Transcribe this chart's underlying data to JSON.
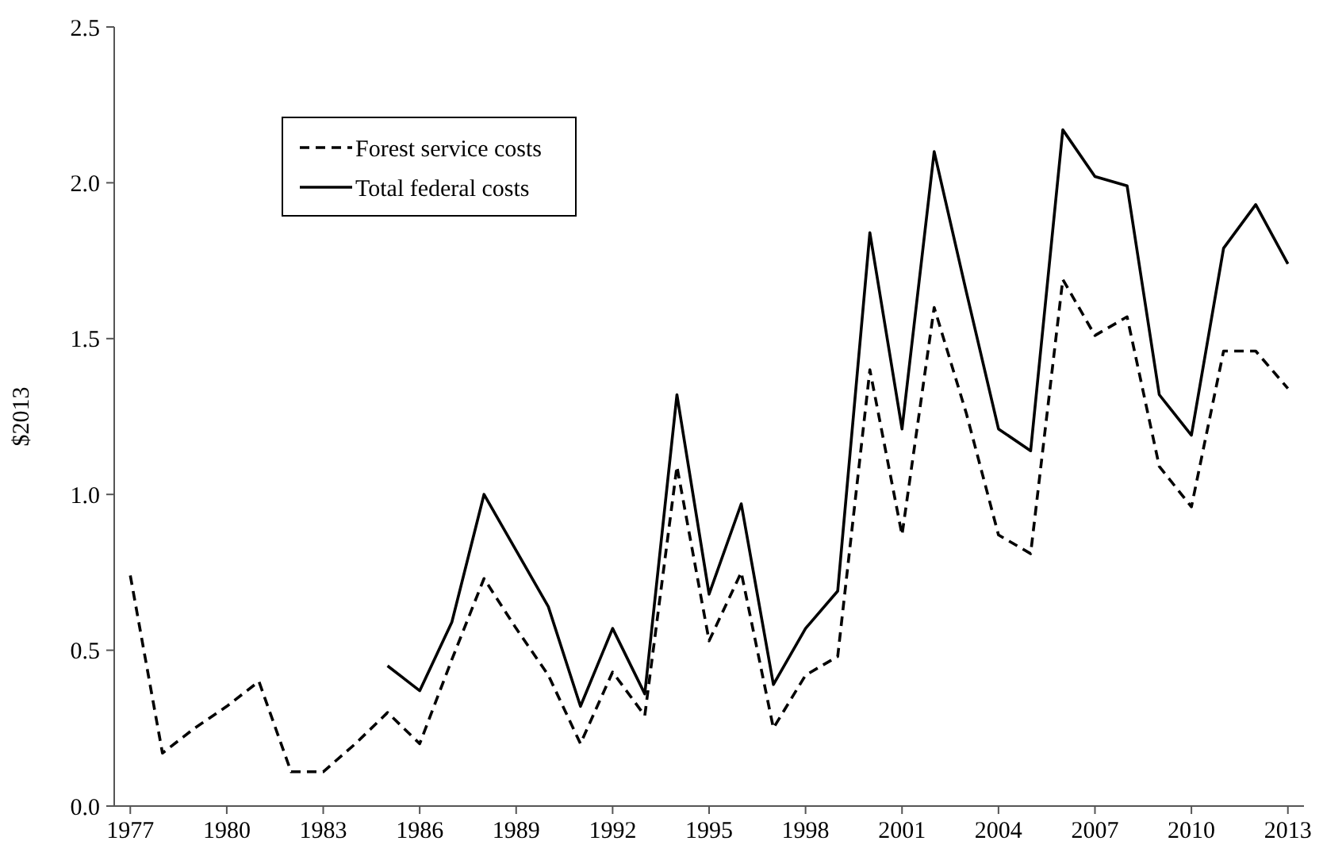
{
  "chart_data": {
    "type": "line",
    "ylabel": "$2013",
    "x": [
      1977,
      1978,
      1979,
      1980,
      1981,
      1982,
      1983,
      1984,
      1985,
      1986,
      1987,
      1988,
      1989,
      1990,
      1991,
      1992,
      1993,
      1994,
      1995,
      1996,
      1997,
      1998,
      1999,
      2000,
      2001,
      2002,
      2003,
      2004,
      2005,
      2006,
      2007,
      2008,
      2009,
      2010,
      2011,
      2012,
      2013
    ],
    "series": [
      {
        "name": "Forest service costs",
        "color": "#000000",
        "line_style": "dashed",
        "values": [
          0.74,
          0.17,
          0.25,
          0.32,
          0.4,
          0.11,
          0.11,
          0.2,
          0.3,
          0.2,
          0.47,
          0.73,
          0.57,
          0.42,
          0.2,
          0.43,
          0.29,
          1.09,
          0.53,
          0.75,
          0.25,
          0.42,
          0.48,
          1.4,
          0.87,
          1.6,
          1.26,
          0.87,
          0.81,
          1.69,
          1.51,
          1.57,
          1.09,
          0.96,
          1.46,
          1.46,
          1.34
        ]
      },
      {
        "name": "Total federal costs",
        "color": "#000000",
        "line_style": "solid",
        "values": [
          null,
          null,
          null,
          null,
          null,
          null,
          null,
          null,
          0.45,
          0.37,
          0.59,
          1.0,
          0.82,
          0.64,
          0.32,
          0.57,
          0.36,
          1.32,
          0.68,
          0.97,
          0.39,
          0.57,
          0.69,
          1.84,
          1.21,
          2.1,
          1.65,
          1.21,
          1.14,
          2.17,
          2.02,
          1.99,
          1.32,
          1.19,
          1.79,
          1.93,
          1.74
        ]
      }
    ],
    "xlim": [
      1976.5,
      2013.5
    ],
    "xticks": [
      1977,
      1980,
      1983,
      1986,
      1989,
      1992,
      1995,
      1998,
      2001,
      2004,
      2007,
      2010,
      2013
    ],
    "ylim": [
      0,
      2.5
    ],
    "yticks": [
      {
        "value": 0,
        "label": "0.0"
      },
      {
        "value": 0.5,
        "label": "0.5"
      },
      {
        "value": 1,
        "label": "1.0"
      },
      {
        "value": 1.5,
        "label": "1.5"
      },
      {
        "value": 2,
        "label": "2.0"
      },
      {
        "value": 2.5,
        "label": "2.5"
      }
    ],
    "grid": false,
    "legend": "top left",
    "marker": "none"
  }
}
